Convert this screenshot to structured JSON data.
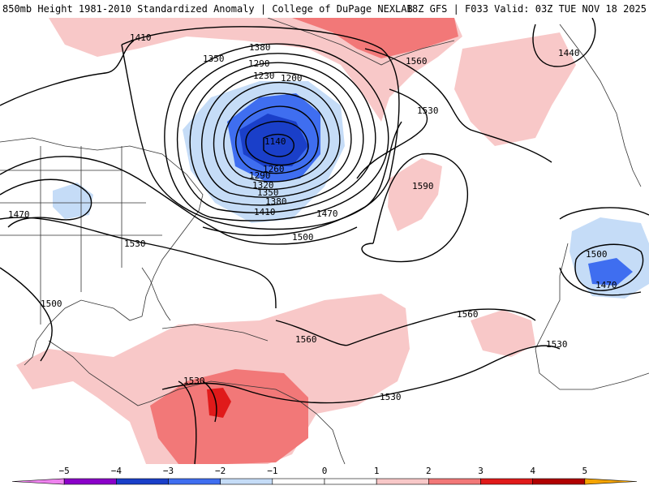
{
  "header": {
    "title_left": "850mb Height 1981-2010 Standardized Anomaly | College of DuPage NEXLAB",
    "title_right": "18Z GFS | F033 Valid: 03Z TUE NOV 18 2025"
  },
  "colors": {
    "neg5": "#ee82ee",
    "neg4": "#8b00c9",
    "neg3": "#1a3fc9",
    "neg2": "#3f6ef0",
    "neg1": "#c5dcf7",
    "zero": "#ffffff",
    "pos1": "#f8c8c8",
    "pos2": "#f27878",
    "pos3": "#e01a1a",
    "pos4": "#b00000",
    "pos5": "#f5a400",
    "contour": "#000000",
    "coastline": "#333333"
  },
  "legend": {
    "labels": [
      "−5",
      "−4",
      "−3",
      "−2",
      "−1",
      "0",
      "1",
      "2",
      "3",
      "4",
      "5"
    ]
  },
  "contour_labels": [
    {
      "text": "1410"
    },
    {
      "text": "1380"
    },
    {
      "text": "1350"
    },
    {
      "text": "1290"
    },
    {
      "text": "1230"
    },
    {
      "text": "1200"
    },
    {
      "text": "1560"
    },
    {
      "text": "1440"
    },
    {
      "text": "1530"
    },
    {
      "text": "1140"
    },
    {
      "text": "1260"
    },
    {
      "text": "1290"
    },
    {
      "text": "1320"
    },
    {
      "text": "1350"
    },
    {
      "text": "1380"
    },
    {
      "text": "1410"
    },
    {
      "text": "1470"
    },
    {
      "text": "1470"
    },
    {
      "text": "1500"
    },
    {
      "text": "1590"
    },
    {
      "text": "1530"
    },
    {
      "text": "1500"
    },
    {
      "text": "1470"
    },
    {
      "text": "1500"
    },
    {
      "text": "1560"
    },
    {
      "text": "1560"
    },
    {
      "text": "1530"
    },
    {
      "text": "1530"
    },
    {
      "text": "1530"
    }
  ]
}
